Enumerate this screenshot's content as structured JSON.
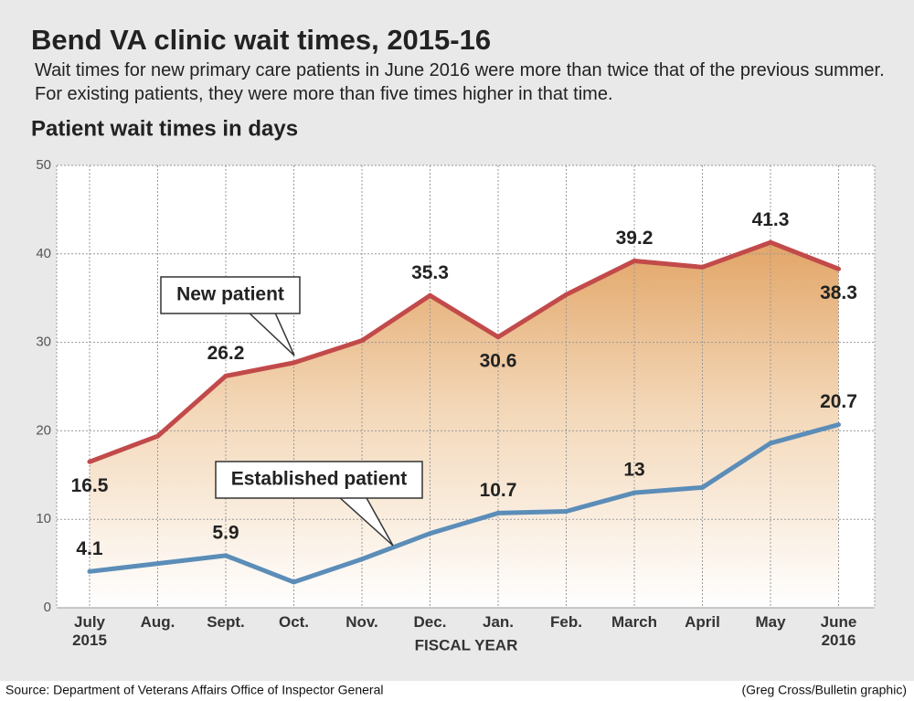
{
  "title": "Bend VA clinic wait times, 2015-16",
  "subtitle": "Wait times for new primary care patients in June 2016 were more than twice that of the previous summer. For existing patients, they were more than five times higher in that time.",
  "source": "Source: Department of Veterans Affairs Office of Inspector General",
  "credit": "(Greg Cross/Bulletin graphic)",
  "chart_data": {
    "type": "line",
    "title": "Patient wait times in days",
    "x_label": "FISCAL YEAR",
    "categories": [
      "July\n2015",
      "Aug.",
      "Sept.",
      "Oct.",
      "Nov.",
      "Dec.",
      "Jan.",
      "Feb.",
      "March",
      "April",
      "May",
      "June\n2016"
    ],
    "series": [
      {
        "name": "New patient",
        "color": "#c24a4a",
        "values": [
          16.5,
          19.4,
          26.2,
          27.7,
          30.2,
          35.3,
          30.6,
          35.4,
          39.2,
          38.5,
          41.3,
          38.3
        ],
        "value_labels": [
          "16.5",
          null,
          "26.2",
          null,
          null,
          "35.3",
          "30.6",
          null,
          "39.2",
          null,
          "41.3",
          "38.3"
        ]
      },
      {
        "name": "Established patient",
        "color": "#5b8db8",
        "values": [
          4.1,
          5.0,
          5.9,
          2.9,
          5.5,
          8.4,
          10.7,
          10.9,
          13,
          13.6,
          18.6,
          20.7
        ],
        "value_labels": [
          "4.1",
          null,
          "5.9",
          null,
          null,
          null,
          "10.7",
          null,
          "13",
          null,
          null,
          "20.7"
        ]
      }
    ],
    "ylim": [
      0,
      50
    ],
    "yticks": [
      0,
      10,
      20,
      30,
      40,
      50
    ],
    "grid": true
  }
}
